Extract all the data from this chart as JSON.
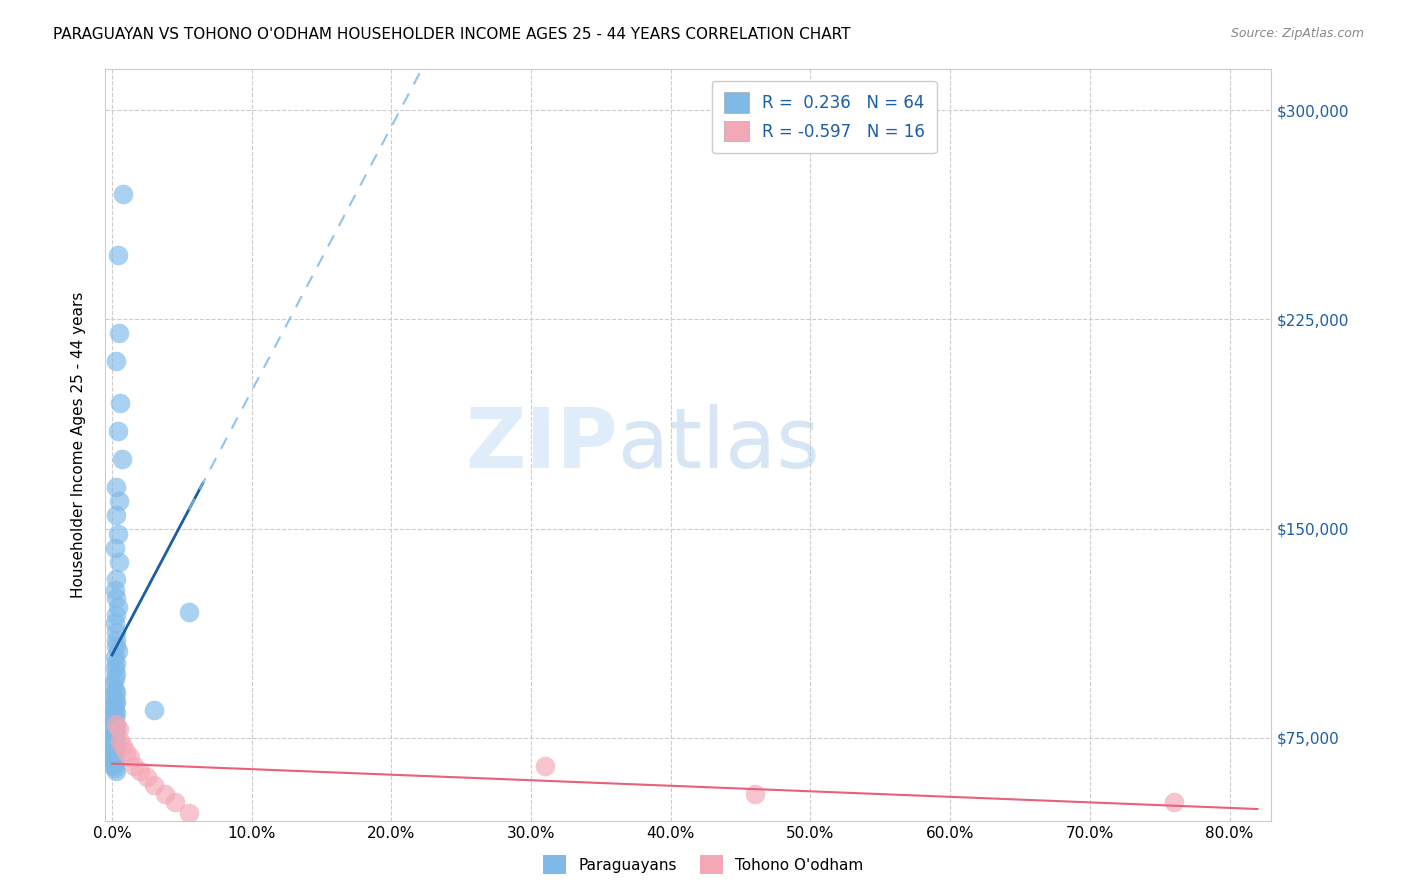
{
  "title": "PARAGUAYAN VS TOHONO O'ODHAM HOUSEHOLDER INCOME AGES 25 - 44 YEARS CORRELATION CHART",
  "source": "Source: ZipAtlas.com",
  "xlabel_ticks": [
    "0.0%",
    "10.0%",
    "20.0%",
    "30.0%",
    "40.0%",
    "50.0%",
    "60.0%",
    "70.0%",
    "80.0%"
  ],
  "ylabel_ticks": [
    "$75,000",
    "$150,000",
    "$225,000",
    "$300,000"
  ],
  "ylabel_values": [
    75000,
    150000,
    225000,
    300000
  ],
  "xlabel_values": [
    0.0,
    0.1,
    0.2,
    0.3,
    0.4,
    0.5,
    0.6,
    0.7,
    0.8
  ],
  "xlim": [
    -0.005,
    0.83
  ],
  "ylim": [
    45000,
    315000
  ],
  "paraguayan_R": 0.236,
  "paraguayan_N": 64,
  "tohono_R": -0.597,
  "tohono_N": 16,
  "blue_color": "#7EB9E8",
  "blue_line_color": "#1B5EA6",
  "pink_color": "#F4A7B5",
  "pink_line_color": "#E8607A",
  "legend_label_paraguayan": "Paraguayans",
  "legend_label_tohono": "Tohono O'odham",
  "paraguayan_x": [
    0.008,
    0.004,
    0.005,
    0.003,
    0.006,
    0.004,
    0.007,
    0.003,
    0.005,
    0.003,
    0.004,
    0.002,
    0.005,
    0.003,
    0.002,
    0.003,
    0.004,
    0.003,
    0.002,
    0.003,
    0.003,
    0.003,
    0.004,
    0.002,
    0.003,
    0.002,
    0.003,
    0.002,
    0.001,
    0.002,
    0.003,
    0.001,
    0.002,
    0.003,
    0.002,
    0.001,
    0.002,
    0.003,
    0.001,
    0.002,
    0.001,
    0.002,
    0.001,
    0.003,
    0.002,
    0.001,
    0.002,
    0.001,
    0.001,
    0.002,
    0.001,
    0.002,
    0.001,
    0.002,
    0.001,
    0.001,
    0.001,
    0.001,
    0.002,
    0.001,
    0.002,
    0.003,
    0.055,
    0.03
  ],
  "paraguayan_y": [
    270000,
    248000,
    220000,
    210000,
    195000,
    185000,
    175000,
    165000,
    160000,
    155000,
    148000,
    143000,
    138000,
    132000,
    128000,
    125000,
    122000,
    119000,
    116000,
    113000,
    110000,
    108000,
    106000,
    104000,
    102000,
    100000,
    98000,
    96000,
    94000,
    92000,
    91000,
    90000,
    89000,
    88000,
    87000,
    86000,
    85000,
    84000,
    83000,
    82000,
    81000,
    80000,
    79000,
    78000,
    77000,
    76000,
    75500,
    75000,
    74000,
    73000,
    72000,
    71000,
    70500,
    70000,
    69500,
    69000,
    68000,
    67000,
    66000,
    65000,
    64000,
    63000,
    120000,
    85000
  ],
  "tohono_x": [
    0.003,
    0.005,
    0.006,
    0.008,
    0.01,
    0.013,
    0.016,
    0.02,
    0.025,
    0.03,
    0.038,
    0.045,
    0.055,
    0.31,
    0.46,
    0.76
  ],
  "tohono_y": [
    80000,
    78000,
    74000,
    72000,
    70000,
    68000,
    65000,
    63000,
    61000,
    58000,
    55000,
    52000,
    48000,
    65000,
    55000,
    52000
  ]
}
